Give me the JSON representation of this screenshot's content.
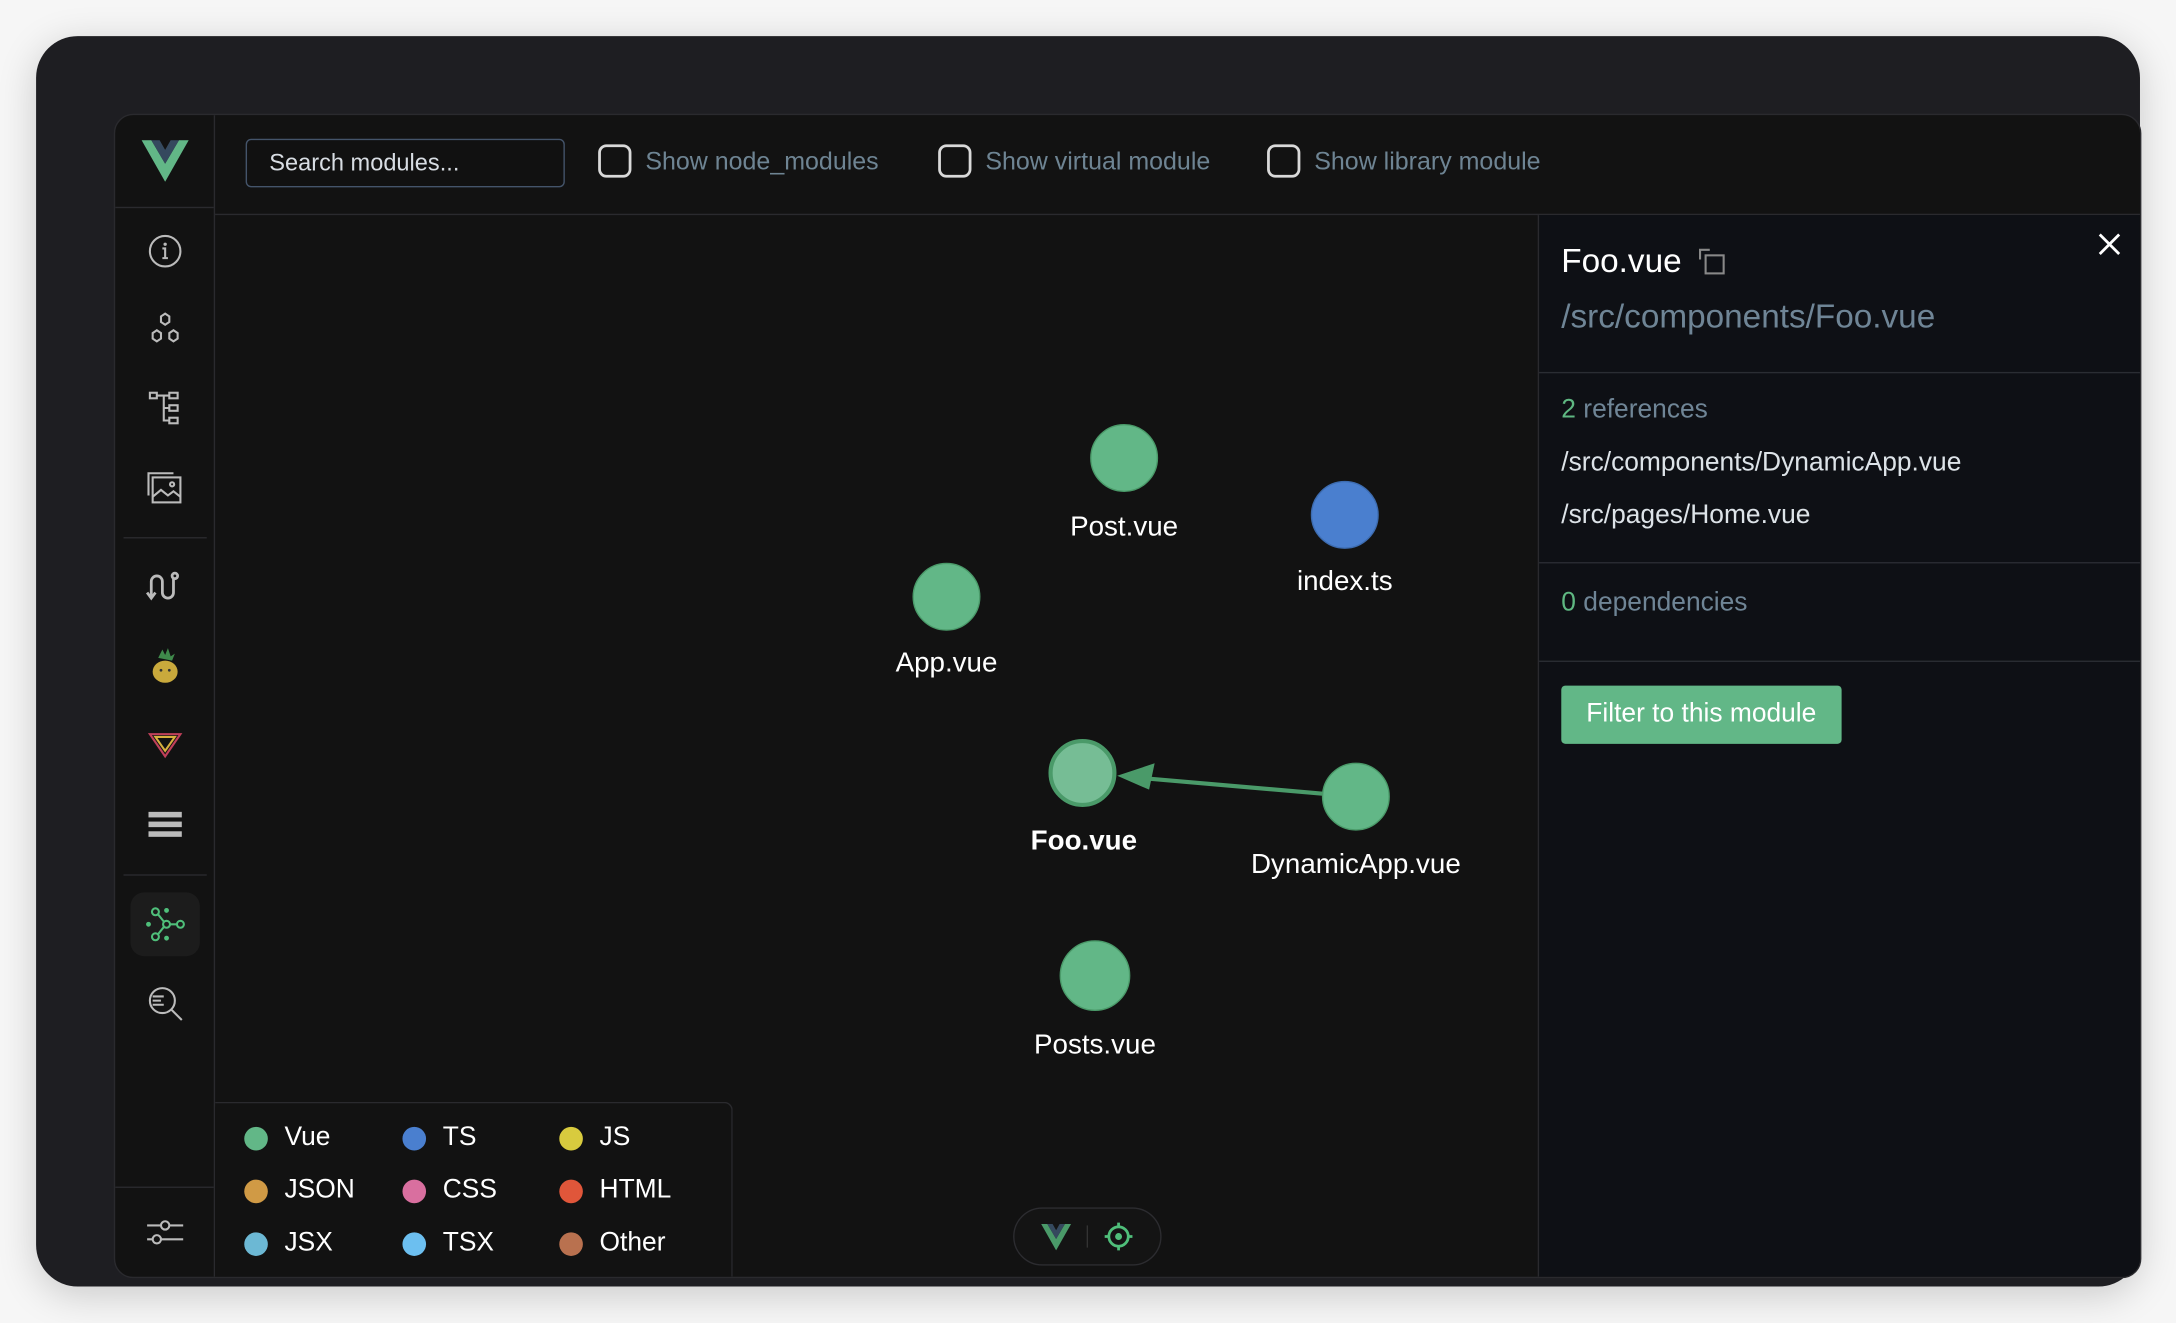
{
  "search": {
    "placeholder": "Search modules..."
  },
  "filters": [
    {
      "label": "Show node_modules",
      "checked": false
    },
    {
      "label": "Show virtual module",
      "checked": false
    },
    {
      "label": "Show library module",
      "checked": false
    }
  ],
  "sidebar": {
    "items": [
      "info-icon",
      "components-icon",
      "tree-icon",
      "assets-icon",
      "timeline-icon",
      "pinia-icon",
      "vue-router-icon",
      "list-icon",
      "graph-icon",
      "inspect-icon"
    ],
    "active": "graph-icon",
    "bottom": "settings-icon"
  },
  "graph": {
    "nodes": [
      {
        "label": "Post.vue",
        "type": "Vue"
      },
      {
        "label": "index.ts",
        "type": "TS"
      },
      {
        "label": "App.vue",
        "type": "Vue"
      },
      {
        "label": "Foo.vue",
        "type": "Vue",
        "selected": true
      },
      {
        "label": "DynamicApp.vue",
        "type": "Vue"
      },
      {
        "label": "Posts.vue",
        "type": "Vue"
      }
    ],
    "edges": [
      {
        "from": "DynamicApp.vue",
        "to": "Foo.vue"
      }
    ]
  },
  "legend": [
    {
      "label": "Vue",
      "color": "#62b787"
    },
    {
      "label": "TS",
      "color": "#4a7fcf"
    },
    {
      "label": "JS",
      "color": "#d8cb3e"
    },
    {
      "label": "JSON",
      "color": "#d09a45"
    },
    {
      "label": "CSS",
      "color": "#d96f9f"
    },
    {
      "label": "HTML",
      "color": "#e0563a"
    },
    {
      "label": "JSX",
      "color": "#6cb8d4"
    },
    {
      "label": "TSX",
      "color": "#6cbff0"
    },
    {
      "label": "Other",
      "color": "#b9714f"
    }
  ],
  "panel": {
    "title": "Foo.vue",
    "path": "/src/components/Foo.vue",
    "references_count": "2",
    "references_label": "references",
    "references": [
      "/src/components/DynamicApp.vue",
      "/src/pages/Home.vue"
    ],
    "dependencies_count": "0",
    "dependencies_label": "dependencies",
    "filter_button": "Filter to this module"
  },
  "colors": {
    "accent": "#62b787",
    "ts": "#4a7fcf"
  }
}
